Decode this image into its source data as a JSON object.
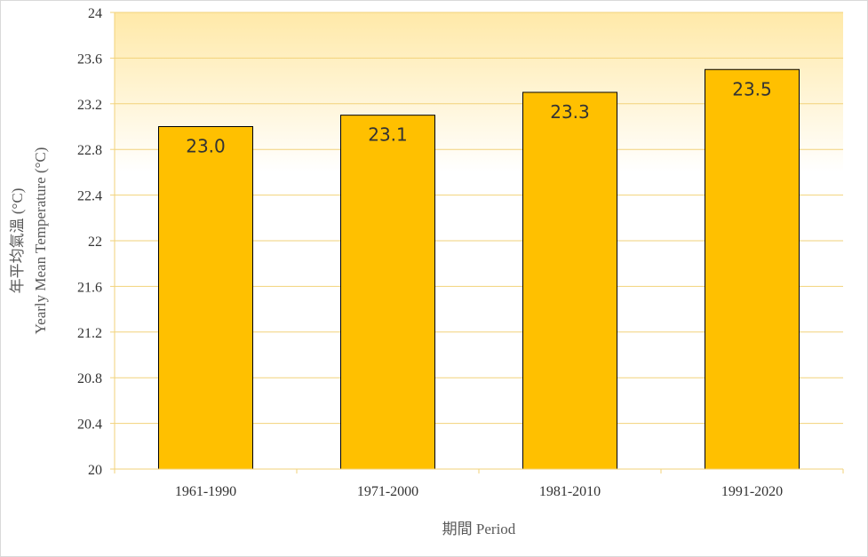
{
  "chart_data": {
    "type": "bar",
    "categories": [
      "1961-1990",
      "1971-2000",
      "1981-2010",
      "1991-2020"
    ],
    "values": [
      23.0,
      23.1,
      23.3,
      23.5
    ],
    "data_labels": [
      "23.0",
      "23.1",
      "23.3",
      "23.5"
    ],
    "xlabel": "期間 Period",
    "ylabel_line1": "年平均氣溫 (°C)",
    "ylabel_line2": "Yearly Mean Temperature (°C)",
    "ylim": [
      20,
      24
    ],
    "yticks": [
      20,
      20.4,
      20.8,
      21.2,
      21.6,
      22,
      22.4,
      22.8,
      23.2,
      23.6,
      24
    ],
    "ytick_labels": [
      "20",
      "20.4",
      "20.8",
      "21.2",
      "21.6",
      "22",
      "22.4",
      "22.8",
      "23.2",
      "23.6",
      "24"
    ],
    "grid": true,
    "legend": "none",
    "colors": {
      "bar_fill": "#ffc000",
      "bar_stroke": "#000000",
      "plot_gradient_top": "#ffe9a8",
      "plot_gradient_bottom": "#ffffff",
      "grid": "#f2d27a"
    }
  }
}
